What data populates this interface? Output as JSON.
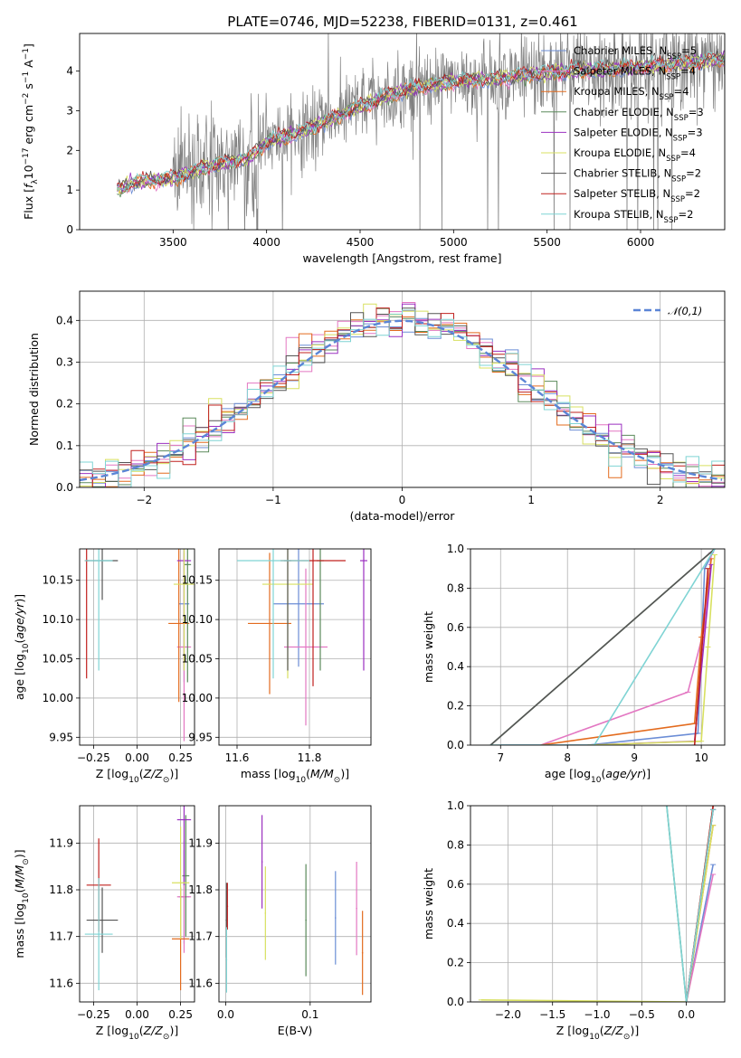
{
  "figure": {
    "title": "PLATE=0746, MJD=52238, FIBERID=0131, z=0.461"
  },
  "models": [
    {
      "label": "Chabrier MILES, N",
      "sub": "SSP",
      "suffix": "=5",
      "color": "#6b8dd6"
    },
    {
      "label": "Salpeter MILES, N",
      "sub": "SSP",
      "suffix": "=4",
      "color": "#e377c2"
    },
    {
      "label": "Kroupa MILES, N",
      "sub": "SSP",
      "suffix": "=4",
      "color": "#e36b1e"
    },
    {
      "label": "Chabrier ELODIE, N",
      "sub": "SSP",
      "suffix": "=3",
      "color": "#5b8a5b"
    },
    {
      "label": "Salpeter ELODIE, N",
      "sub": "SSP",
      "suffix": "=3",
      "color": "#9b30c0"
    },
    {
      "label": "Kroupa ELODIE, N",
      "sub": "SSP",
      "suffix": "=4",
      "color": "#d8e060"
    },
    {
      "label": "Chabrier STELIB, N",
      "sub": "SSP",
      "suffix": "=2",
      "color": "#555555"
    },
    {
      "label": "Salpeter STELIB, N",
      "sub": "SSP",
      "suffix": "=2",
      "color": "#c0201e"
    },
    {
      "label": "Kroupa STELIB, N",
      "sub": "SSP",
      "suffix": "=2",
      "color": "#7fd4d4"
    }
  ],
  "chart_data": [
    {
      "id": "spectrum",
      "type": "line",
      "xlabel": "wavelength [Angstrom, rest frame]",
      "ylabel": "Flux [f_λ 10^-17 erg cm^-2 s^-1 A^-1]",
      "xlim": [
        3000,
        6450
      ],
      "ylim": [
        0,
        4.95
      ],
      "xticks": [
        3500,
        4000,
        4500,
        5000,
        5500,
        6000
      ],
      "yticks": [
        0,
        1,
        2,
        3,
        4
      ],
      "data_start": 3200,
      "continuum": [
        [
          3200,
          1.0
        ],
        [
          3300,
          1.2
        ],
        [
          3500,
          1.3
        ],
        [
          3700,
          1.6
        ],
        [
          3900,
          1.8
        ],
        [
          4000,
          2.2
        ],
        [
          4200,
          2.5
        ],
        [
          4400,
          2.9
        ],
        [
          4600,
          3.3
        ],
        [
          4800,
          3.6
        ],
        [
          5000,
          3.75
        ],
        [
          5200,
          3.8
        ],
        [
          5400,
          3.9
        ],
        [
          5600,
          4.0
        ],
        [
          5800,
          4.05
        ],
        [
          6000,
          4.1
        ],
        [
          6200,
          4.2
        ],
        [
          6450,
          4.3
        ]
      ],
      "grid": false
    },
    {
      "id": "residuals",
      "type": "histogram",
      "xlabel": "(data-model)/error",
      "ylabel": "Normed distribution",
      "xlim": [
        -2.5,
        2.5
      ],
      "ylim": [
        0,
        0.47
      ],
      "xticks": [
        -2,
        -1,
        0,
        1,
        2
      ],
      "yticks": [
        0.0,
        0.1,
        0.2,
        0.3,
        0.4
      ],
      "bin_width": 0.1,
      "reference": {
        "name": "𝒩(0,1)",
        "type": "normal",
        "mean": 0,
        "sigma": 1,
        "color": "#5b85d6"
      },
      "grid": true,
      "legend": "top-right"
    },
    {
      "id": "age_vs_Z",
      "type": "errorbar",
      "xlabel": "Z [log10(Z/Z⊙)]",
      "ylabel": "age [log10(age/yr)]",
      "xlim": [
        -0.33,
        0.33
      ],
      "ylim": [
        9.94,
        10.19
      ],
      "xticks": [
        -0.25,
        0.0,
        0.25
      ],
      "yticks": [
        9.95,
        10.0,
        10.05,
        10.1,
        10.15
      ],
      "points": [
        {
          "m": 0,
          "x": 0.27,
          "y": 10.12,
          "xerr": 0.03,
          "yerr": 0.1
        },
        {
          "m": 1,
          "x": 0.27,
          "y": 10.065,
          "xerr": 0.04,
          "yerr": 0.12
        },
        {
          "m": 2,
          "x": 0.24,
          "y": 10.095,
          "xerr": 0.06,
          "yerr": 0.1
        },
        {
          "m": 3,
          "x": 0.29,
          "y": 10.17,
          "xerr": 0.02,
          "yerr": 0.15
        },
        {
          "m": 4,
          "x": 0.27,
          "y": 10.175,
          "xerr": 0.04,
          "yerr": 0.14
        },
        {
          "m": 5,
          "x": 0.27,
          "y": 10.145,
          "xerr": 0.06,
          "yerr": 0.11
        },
        {
          "m": 6,
          "x": -0.2,
          "y": 10.175,
          "xerr": 0.09,
          "yerr": 0.05
        },
        {
          "m": 7,
          "x": -0.29,
          "y": 10.175,
          "xerr": 0.01,
          "yerr": 0.15
        },
        {
          "m": 8,
          "x": -0.22,
          "y": 10.175,
          "xerr": 0.08,
          "yerr": 0.14
        }
      ],
      "grid": true
    },
    {
      "id": "age_vs_mass",
      "type": "errorbar",
      "xlabel": "mass [log10(M/M⊙)]",
      "ylabel": "",
      "xlim": [
        11.55,
        11.97
      ],
      "ylim": [
        9.94,
        10.19
      ],
      "xticks": [
        11.6,
        11.8
      ],
      "yticks": [
        9.95,
        10.0,
        10.05,
        10.1,
        10.15
      ],
      "points": [
        {
          "m": 0,
          "x": 11.77,
          "y": 10.12,
          "xerr": 0.07,
          "yerr": 0.08
        },
        {
          "m": 1,
          "x": 11.79,
          "y": 10.065,
          "xerr": 0.06,
          "yerr": 0.1
        },
        {
          "m": 2,
          "x": 11.69,
          "y": 10.095,
          "xerr": 0.06,
          "yerr": 0.09
        },
        {
          "m": 3,
          "x": 11.83,
          "y": 10.175,
          "xerr": 0.01,
          "yerr": 0.14
        },
        {
          "m": 4,
          "x": 11.95,
          "y": 10.175,
          "xerr": 0.01,
          "yerr": 0.14
        },
        {
          "m": 5,
          "x": 11.74,
          "y": 10.145,
          "xerr": 0.07,
          "yerr": 0.12
        },
        {
          "m": 6,
          "x": 11.74,
          "y": 10.175,
          "xerr": 0.01,
          "yerr": 0.14
        },
        {
          "m": 7,
          "x": 11.81,
          "y": 10.175,
          "xerr": 0.09,
          "yerr": 0.16
        },
        {
          "m": 8,
          "x": 11.7,
          "y": 10.175,
          "xerr": 0.1,
          "yerr": 0.15
        }
      ],
      "grid": true
    },
    {
      "id": "mass_weight_vs_age",
      "type": "line",
      "xlabel": "age  [log10(age/yr)]",
      "ylabel": "mass weight",
      "xlim": [
        6.55,
        10.35
      ],
      "ylim": [
        0,
        1.0
      ],
      "xticks": [
        7,
        8,
        9,
        10
      ],
      "yticks": [
        0.0,
        0.2,
        0.4,
        0.6,
        0.8,
        1.0
      ],
      "series": [
        {
          "m": 0,
          "x": [
            7.0,
            8.3,
            9.95,
            10.05,
            10.2
          ],
          "y": [
            0.0,
            0.0,
            0.06,
            0.9,
            1.0
          ]
        },
        {
          "m": 1,
          "x": [
            7.6,
            9.8,
            10.05,
            10.15
          ],
          "y": [
            0.0,
            0.27,
            0.6,
            0.98
          ]
        },
        {
          "m": 2,
          "x": [
            7.6,
            9.9,
            10.0,
            10.15
          ],
          "y": [
            0.0,
            0.11,
            0.55,
            0.95
          ]
        },
        {
          "m": 3,
          "x": [
            6.85,
            10.2
          ],
          "y": [
            0.0,
            1.0
          ]
        },
        {
          "m": 4,
          "x": [
            8.3,
            9.9,
            10.15
          ],
          "y": [
            0.0,
            0.02,
            0.92
          ]
        },
        {
          "m": 5,
          "x": [
            8.3,
            10.0,
            10.1,
            10.2
          ],
          "y": [
            0.0,
            0.02,
            0.5,
            0.97
          ]
        },
        {
          "m": 6,
          "x": [
            6.85,
            10.2
          ],
          "y": [
            0.0,
            1.0
          ]
        },
        {
          "m": 7,
          "x": [
            9.9,
            10.1
          ],
          "y": [
            0.0,
            0.9
          ]
        },
        {
          "m": 8,
          "x": [
            6.85,
            8.4,
            10.2
          ],
          "y": [
            0.0,
            0.0,
            1.0
          ]
        }
      ],
      "grid": true
    },
    {
      "id": "mass_vs_Z",
      "type": "errorbar",
      "xlabel": "Z [log10(Z/Z⊙)]",
      "ylabel": "mass [log10(M/M⊙)]",
      "xlim": [
        -0.33,
        0.33
      ],
      "ylim": [
        11.56,
        11.98
      ],
      "xticks": [
        -0.25,
        0.0,
        0.25
      ],
      "yticks": [
        11.6,
        11.7,
        11.8,
        11.9
      ],
      "points": [
        {
          "m": 0,
          "x": 0.27,
          "y": 11.785,
          "xerr": 0.03,
          "yerr": 0.1
        },
        {
          "m": 1,
          "x": 0.27,
          "y": 11.785,
          "xerr": 0.04,
          "yerr": 0.12
        },
        {
          "m": 2,
          "x": 0.25,
          "y": 11.695,
          "xerr": 0.05,
          "yerr": 0.11
        },
        {
          "m": 3,
          "x": 0.28,
          "y": 11.83,
          "xerr": 0.02,
          "yerr": 0.13
        },
        {
          "m": 4,
          "x": 0.27,
          "y": 11.95,
          "xerr": 0.04,
          "yerr": 0.14
        },
        {
          "m": 5,
          "x": 0.25,
          "y": 11.815,
          "xerr": 0.05,
          "yerr": 0.12
        },
        {
          "m": 6,
          "x": -0.2,
          "y": 11.735,
          "xerr": 0.09,
          "yerr": 0.07
        },
        {
          "m": 7,
          "x": -0.22,
          "y": 11.81,
          "xerr": 0.07,
          "yerr": 0.1
        },
        {
          "m": 8,
          "x": -0.22,
          "y": 11.705,
          "xerr": 0.08,
          "yerr": 0.12
        }
      ],
      "grid": true
    },
    {
      "id": "mass_vs_ebv",
      "type": "errorbar",
      "xlabel": "E(B-V)",
      "ylabel": "",
      "xlim": [
        -0.008,
        0.172
      ],
      "ylim": [
        11.56,
        11.98
      ],
      "xticks": [
        0.0,
        0.1
      ],
      "yticks": [
        11.6,
        11.7,
        11.8,
        11.9
      ],
      "points": [
        {
          "m": 0,
          "x": 0.13,
          "y": 11.74,
          "xerr": 0,
          "yerr": 0.1
        },
        {
          "m": 1,
          "x": 0.155,
          "y": 11.76,
          "xerr": 0,
          "yerr": 0.1
        },
        {
          "m": 2,
          "x": 0.162,
          "y": 11.665,
          "xerr": 0,
          "yerr": 0.09
        },
        {
          "m": 3,
          "x": 0.095,
          "y": 11.735,
          "xerr": 0,
          "yerr": 0.12
        },
        {
          "m": 4,
          "x": 0.043,
          "y": 11.86,
          "xerr": 0,
          "yerr": 0.1
        },
        {
          "m": 5,
          "x": 0.047,
          "y": 11.75,
          "xerr": 0,
          "yerr": 0.1
        },
        {
          "m": 6,
          "x": 0.001,
          "y": 11.735,
          "xerr": 0,
          "yerr": 0.08
        },
        {
          "m": 7,
          "x": 0.002,
          "y": 11.765,
          "xerr": 0,
          "yerr": 0.05
        },
        {
          "m": 8,
          "x": 0.001,
          "y": 11.65,
          "xerr": 0,
          "yerr": 0.07
        }
      ],
      "grid": true
    },
    {
      "id": "mass_weight_vs_Z",
      "type": "line",
      "xlabel": "Z [log10(Z/Z⊙)]",
      "ylabel": "mass weight",
      "xlim": [
        -2.42,
        0.43
      ],
      "ylim": [
        0,
        1.0
      ],
      "xticks": [
        -2.0,
        -1.5,
        -1.0,
        -0.5,
        0.0
      ],
      "yticks": [
        0.0,
        0.2,
        0.4,
        0.6,
        0.8,
        1.0
      ],
      "series": [
        {
          "m": 0,
          "x": [
            0.0,
            0.3
          ],
          "y": [
            0.0,
            0.7
          ]
        },
        {
          "m": 1,
          "x": [
            0.0,
            0.3
          ],
          "y": [
            0.0,
            0.65
          ]
        },
        {
          "m": 2,
          "x": [
            0.0,
            0.3
          ],
          "y": [
            0.0,
            0.9
          ]
        },
        {
          "m": 3,
          "x": [
            -0.22,
            0.0,
            0.3
          ],
          "y": [
            1.0,
            0.0,
            1.0
          ]
        },
        {
          "m": 4,
          "x": [
            0.0,
            0.3
          ],
          "y": [
            0.0,
            0.98
          ]
        },
        {
          "m": 5,
          "x": [
            -2.3,
            0.0,
            0.3
          ],
          "y": [
            0.01,
            0.0,
            0.9
          ]
        },
        {
          "m": 6,
          "x": [
            0.0,
            0.3
          ],
          "y": [
            0.0,
            0.98
          ]
        },
        {
          "m": 7,
          "x": [
            0.0,
            0.3
          ],
          "y": [
            0.0,
            1.0
          ]
        },
        {
          "m": 8,
          "x": [
            -0.22,
            0.0,
            0.3
          ],
          "y": [
            1.0,
            0.0,
            0.98
          ]
        }
      ],
      "grid": true
    }
  ]
}
